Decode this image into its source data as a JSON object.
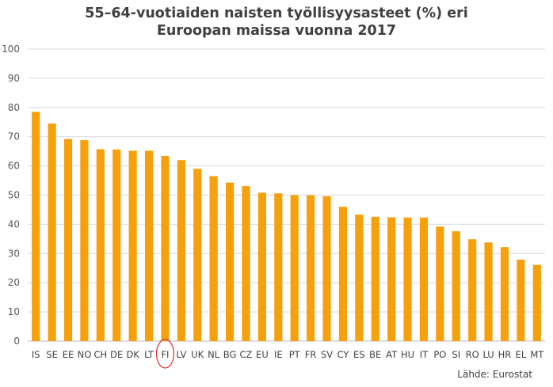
{
  "chart_data": {
    "type": "bar",
    "title_line1": "55–64-vuotiaiden naisten työllisyysasteet (%) eri",
    "title_line2": "Euroopan maissa vuonna 2017",
    "source": "Lähde: Eurostat",
    "categories": [
      "IS",
      "SE",
      "EE",
      "NO",
      "CH",
      "DE",
      "DK",
      "LT",
      "FI",
      "LV",
      "UK",
      "NL",
      "BG",
      "CZ",
      "EU",
      "IE",
      "PT",
      "FR",
      "SV",
      "CY",
      "ES",
      "BE",
      "AT",
      "HU",
      "IT",
      "PO",
      "SI",
      "RO",
      "LU",
      "HR",
      "EL",
      "MT"
    ],
    "values": [
      78.5,
      74.5,
      69.2,
      68.8,
      65.7,
      65.6,
      65.2,
      65.2,
      63.4,
      62.0,
      59.0,
      56.5,
      54.3,
      53.1,
      50.8,
      50.6,
      50.0,
      49.9,
      49.6,
      46.0,
      43.3,
      42.6,
      42.4,
      42.3,
      42.3,
      39.2,
      37.6,
      34.9,
      33.8,
      32.2,
      27.9,
      26.1
    ],
    "highlight": "FI",
    "ylim": [
      0,
      100
    ],
    "yticks": [
      0,
      10,
      20,
      30,
      40,
      50,
      60,
      70,
      80,
      90,
      100
    ],
    "bar_color": "#F5A10E",
    "highlight_color": "#D9302C",
    "grid": true,
    "legend": "none"
  }
}
